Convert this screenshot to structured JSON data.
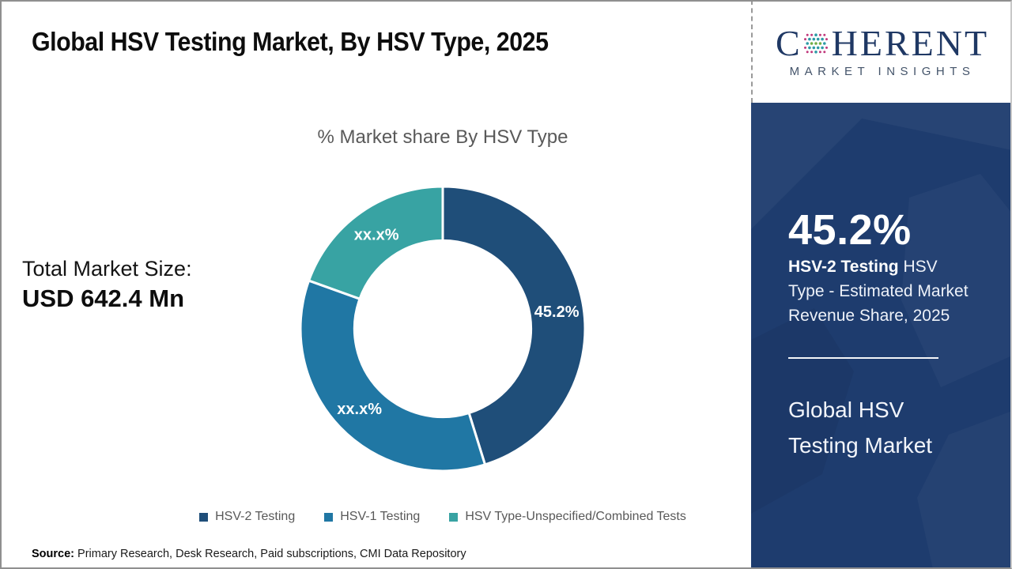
{
  "header": {
    "title": "Global HSV Testing Market, By HSV Type, 2025"
  },
  "logo": {
    "brand_c": "C",
    "brand_rest": "HERENT",
    "tagline": "MARKET INSIGHTS",
    "colors": {
      "navy": "#1f3864",
      "tagline": "#44546a",
      "dot_green": "#70ad47",
      "dot_teal": "#2e9aa6",
      "dot_magenta": "#c13a7d"
    }
  },
  "main": {
    "chart_subtitle": "% Market share By HSV Type",
    "total_market_label": "Total Market Size:",
    "total_market_value": "USD 642.4 Mn",
    "source_label": "Source:",
    "source_text": " Primary Research, Desk Research, Paid subscriptions, CMI Data Repository"
  },
  "chart_data": {
    "type": "pie",
    "subtype": "donut",
    "title": "% Market share By HSV Type",
    "categories": [
      "HSV-2 Testing",
      "HSV-1 Testing",
      "HSV Type-Unspecified/Combined Tests"
    ],
    "values": [
      45.2,
      35.3,
      19.5
    ],
    "displayed_labels": [
      "45.2%",
      "xx.x%",
      "xx.x%"
    ],
    "colors": [
      "#1F4E79",
      "#2077A4",
      "#38A3A3"
    ],
    "start_angle_deg": 0,
    "inner_radius_ratio": 0.62,
    "segment_gap_color": "#ffffff",
    "legend_position": "bottom",
    "note": "values for xx.x% segments estimated from arc geometry"
  },
  "sidebar": {
    "stat_value": "45.2%",
    "stat_bold": "HSV-2 Testing",
    "stat_rest": " HSV Type - Estimated Market Revenue Share, 2025",
    "panel_title": "Global HSV Testing Market",
    "colors": {
      "panel": "#1e3c6e",
      "pattern": "#ffffff"
    }
  }
}
